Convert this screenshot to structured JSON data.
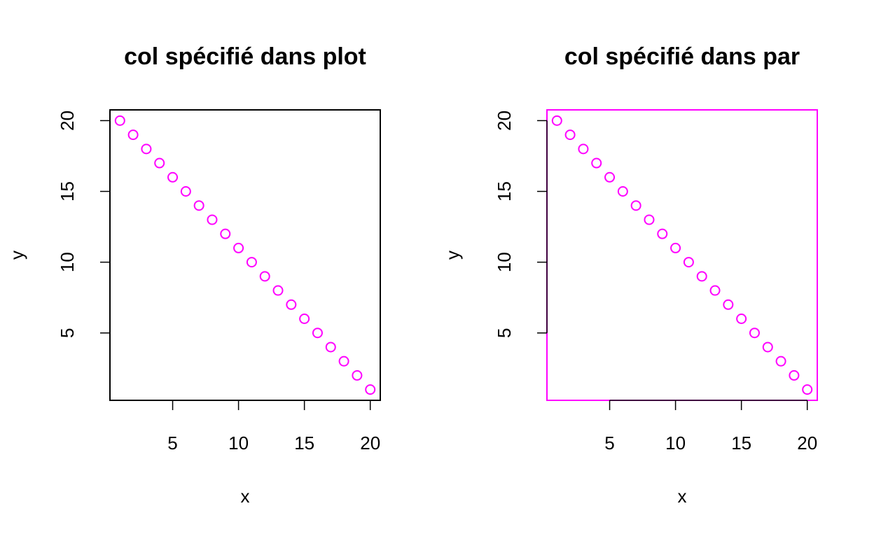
{
  "colors": {
    "points": "#ff00ff",
    "axes": "#000000",
    "box_right": "#ff00ff"
  },
  "chart_data": [
    {
      "type": "scatter",
      "title": "col spécifié dans plot",
      "xlabel": "x",
      "ylabel": "y",
      "marker": "open-circle",
      "point_color": "#ff00ff",
      "box_color": "#000000",
      "x": [
        1,
        2,
        3,
        4,
        5,
        6,
        7,
        8,
        9,
        10,
        11,
        12,
        13,
        14,
        15,
        16,
        17,
        18,
        19,
        20
      ],
      "y": [
        20,
        19,
        18,
        17,
        16,
        15,
        14,
        13,
        12,
        11,
        10,
        9,
        8,
        7,
        6,
        5,
        4,
        3,
        2,
        1
      ],
      "xlim": [
        0.24,
        20.76
      ],
      "ylim": [
        0.24,
        20.76
      ],
      "xticks": [
        5,
        10,
        15,
        20
      ],
      "yticks": [
        5,
        10,
        15,
        20
      ],
      "xtick_labels": [
        "5",
        "10",
        "15",
        "20"
      ],
      "ytick_labels": [
        "5",
        "10",
        "15",
        "20"
      ],
      "grid": false
    },
    {
      "type": "scatter",
      "title": "col spécifié dans par",
      "xlabel": "x",
      "ylabel": "y",
      "marker": "open-circle",
      "point_color": "#ff00ff",
      "box_color": "#ff00ff",
      "x": [
        1,
        2,
        3,
        4,
        5,
        6,
        7,
        8,
        9,
        10,
        11,
        12,
        13,
        14,
        15,
        16,
        17,
        18,
        19,
        20
      ],
      "y": [
        20,
        19,
        18,
        17,
        16,
        15,
        14,
        13,
        12,
        11,
        10,
        9,
        8,
        7,
        6,
        5,
        4,
        3,
        2,
        1
      ],
      "xlim": [
        0.24,
        20.76
      ],
      "ylim": [
        0.24,
        20.76
      ],
      "xticks": [
        5,
        10,
        15,
        20
      ],
      "yticks": [
        5,
        10,
        15,
        20
      ],
      "xtick_labels": [
        "5",
        "10",
        "15",
        "20"
      ],
      "ytick_labels": [
        "5",
        "10",
        "15",
        "20"
      ],
      "grid": false
    }
  ]
}
